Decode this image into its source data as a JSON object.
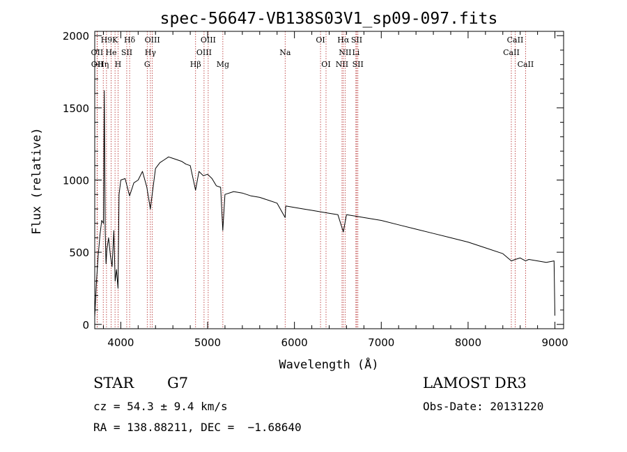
{
  "chart_data": {
    "type": "line",
    "title": "spec-56647-VB138S03V1_sp09-097.fits",
    "xlabel": "Wavelength (Å)",
    "ylabel": "Flux (relative)",
    "xlim": [
      3700,
      9100
    ],
    "ylim": [
      -30,
      2030
    ],
    "xticks": [
      4000,
      5000,
      6000,
      7000,
      8000,
      9000
    ],
    "xtick_labels": [
      "4000",
      "5000",
      "6000",
      "7000",
      "8000",
      "9000"
    ],
    "yticks": [
      0,
      500,
      1000,
      1500,
      2000
    ],
    "ytick_labels": [
      "0",
      "500",
      "1000",
      "1500",
      "2000"
    ],
    "grid": false,
    "series": [
      {
        "name": "flux",
        "x": [
          3700,
          3720,
          3740,
          3760,
          3780,
          3800,
          3810,
          3820,
          3830,
          3840,
          3860,
          3880,
          3900,
          3920,
          3935,
          3950,
          3968,
          3980,
          4000,
          4050,
          4101,
          4150,
          4200,
          4250,
          4300,
          4340,
          4400,
          4450,
          4500,
          4550,
          4600,
          4650,
          4700,
          4750,
          4800,
          4861,
          4900,
          4950,
          5000,
          5050,
          5100,
          5150,
          5175,
          5200,
          5300,
          5400,
          5500,
          5600,
          5700,
          5800,
          5893,
          5900,
          6000,
          6100,
          6200,
          6300,
          6400,
          6500,
          6563,
          6600,
          6700,
          6800,
          7000,
          7200,
          7400,
          7600,
          7800,
          8000,
          8200,
          8400,
          8498,
          8542,
          8600,
          8662,
          8700,
          8800,
          8900,
          8990,
          9000
        ],
        "values": [
          50,
          300,
          480,
          620,
          720,
          700,
          1620,
          650,
          420,
          520,
          600,
          480,
          400,
          650,
          300,
          380,
          250,
          900,
          1000,
          1010,
          890,
          980,
          1000,
          1060,
          950,
          800,
          1080,
          1120,
          1140,
          1160,
          1150,
          1140,
          1130,
          1110,
          1100,
          930,
          1060,
          1030,
          1040,
          1010,
          960,
          950,
          650,
          900,
          920,
          910,
          890,
          880,
          860,
          840,
          740,
          820,
          810,
          800,
          790,
          780,
          770,
          760,
          640,
          760,
          750,
          740,
          720,
          690,
          660,
          630,
          600,
          570,
          530,
          490,
          440,
          450,
          460,
          440,
          450,
          440,
          430,
          440,
          60
        ]
      }
    ],
    "spectral_lines": [
      {
        "label": "Hδ",
        "wave": 4101.7,
        "row": 0
      },
      {
        "label": "K",
        "wave": 3933.7,
        "row": 0
      },
      {
        "label": "H9",
        "wave": 3835.4,
        "row": 0
      },
      {
        "label": "OIII",
        "wave": 4363.2,
        "row": 0
      },
      {
        "label": "OIII",
        "wave": 5006.8,
        "row": 0
      },
      {
        "label": "OI",
        "wave": 6300.3,
        "row": 0
      },
      {
        "label": "Hα",
        "wave": 6562.8,
        "row": 0
      },
      {
        "label": "SII",
        "wave": 6716.4,
        "row": 0
      },
      {
        "label": "CaII",
        "wave": 8542.1,
        "row": 0
      },
      {
        "label": "OII",
        "wave": 3727.0,
        "row": 1
      },
      {
        "label": "He",
        "wave": 3888.6,
        "row": 1
      },
      {
        "label": "SII",
        "wave": 4068.6,
        "row": 1
      },
      {
        "label": "Hγ",
        "wave": 4340.5,
        "row": 1
      },
      {
        "label": "OIII",
        "wave": 4958.9,
        "row": 1
      },
      {
        "label": "Na",
        "wave": 5892.9,
        "row": 1
      },
      {
        "label": "NII",
        "wave": 6583.4,
        "row": 1
      },
      {
        "label": "Li",
        "wave": 6707.8,
        "row": 1
      },
      {
        "label": "CaII",
        "wave": 8498.0,
        "row": 1
      },
      {
        "label": "OII",
        "wave": 3729.0,
        "row": 2
      },
      {
        "label": "Hη",
        "wave": 3797.9,
        "row": 2
      },
      {
        "label": "H",
        "wave": 3968.5,
        "row": 2
      },
      {
        "label": "G",
        "wave": 4304.4,
        "row": 2
      },
      {
        "label": "Hβ",
        "wave": 4861.3,
        "row": 2
      },
      {
        "label": "Mg",
        "wave": 5175.3,
        "row": 2
      },
      {
        "label": "OI",
        "wave": 6363.8,
        "row": 2
      },
      {
        "label": "NII",
        "wave": 6548.0,
        "row": 2
      },
      {
        "label": "SII",
        "wave": 6730.8,
        "row": 2
      },
      {
        "label": "CaII",
        "wave": 8662.1,
        "row": 2
      }
    ],
    "line_marker_color": "#b22222",
    "axis_color": "#000000"
  },
  "info": {
    "object_class": "STAR",
    "subclass": "G7",
    "survey": "LAMOST DR3",
    "cz": "cz = 54.3 ± 9.4 km/s",
    "obs_date": "Obs-Date: 20131220",
    "coords": "RA = 138.88211, DEC =  −1.68640"
  }
}
